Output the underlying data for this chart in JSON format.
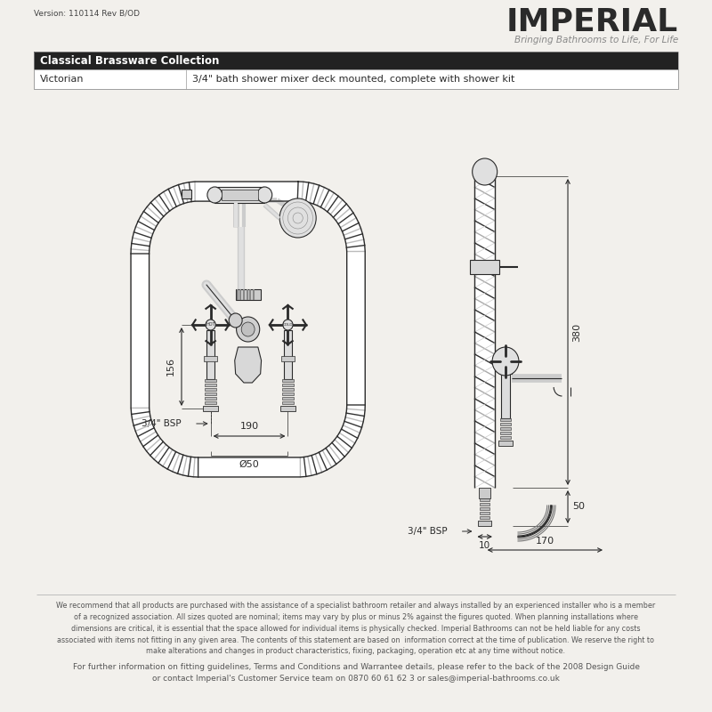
{
  "bg_color": "#f2f0ec",
  "line_color": "#2a2a2a",
  "version_text": "Version: 110114 Rev B/OD",
  "brand_name": "IMPERIAL",
  "tagline": "Bringing Bathrooms to Life, For Life",
  "table_header": "Classical Brassware Collection",
  "table_col1": "Victorian",
  "table_col2": "3/4\" bath shower mixer deck mounted, complete with shower kit",
  "header_bg": "#222222",
  "header_fg": "#ffffff",
  "disclaimer1": "We recommend that all products are purchased with the assistance of a specialist bathroom retailer and always installed by an experienced installer who is a member\nof a recognized association. All sizes quoted are nominal; items may vary by plus or minus 2% against the figures quoted. When planning installations where\ndimensions are critical, it is essential that the space allowed for individual items is physically checked. Imperial Bathrooms can not be held liable for any costs\nassociated with items not fitting in any given area. The contents of this statement are based on  information correct at the time of publication. We reserve the right to\nmake alterations and changes in product characteristics, fixing, packaging, operation etc at any time without notice.",
  "disclaimer2": "For further information on fitting guidelines, Terms and Conditions and Warrantee details, please refer to the back of the 2008 Design Guide\nor contact Imperial's Customer Service team on 0870 60 61 62 3 or sales@imperial-bathrooms.co.uk",
  "dim_156": "156",
  "dim_190": "190",
  "dim_50": "Ø50",
  "dim_bsp_left": "3/4\" BSP",
  "dim_380": "380",
  "dim_50b": "50",
  "dim_10": "10",
  "dim_170": "170",
  "dim_bsp_right": "3/4\" BSP"
}
